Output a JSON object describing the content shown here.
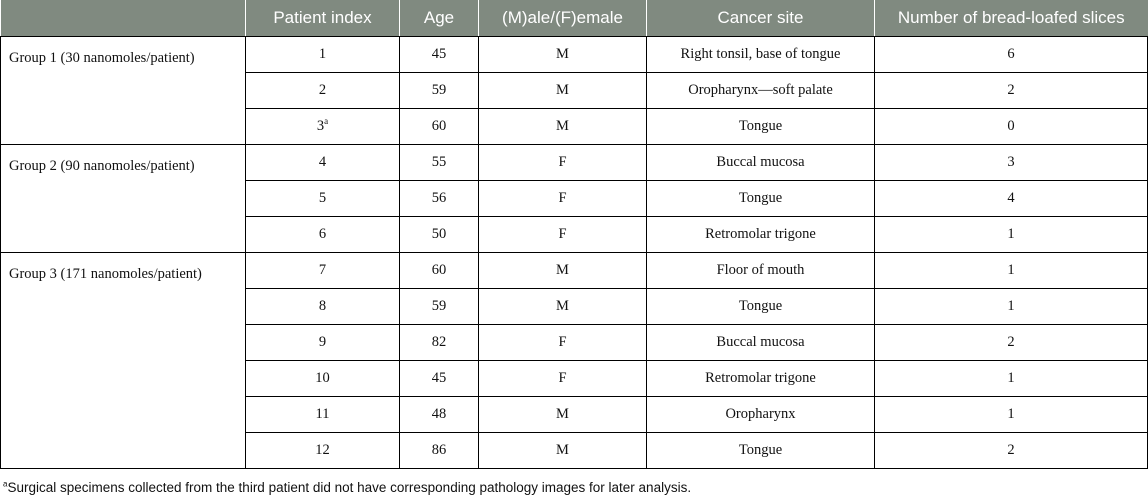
{
  "table": {
    "headers": [
      "",
      "Patient index",
      "Age",
      "(M)ale/(F)emale",
      "Cancer site",
      "Number of bread-loafed slices"
    ],
    "groups": [
      {
        "label": "Group 1 (30 nanomoles/patient)",
        "rows": [
          {
            "index": "1",
            "sup": "",
            "age": "45",
            "sex": "M",
            "site": "Right tonsil, base of tongue",
            "slices": "6"
          },
          {
            "index": "2",
            "sup": "",
            "age": "59",
            "sex": "M",
            "site": "Oropharynx—soft palate",
            "slices": "2"
          },
          {
            "index": "3",
            "sup": "a",
            "age": "60",
            "sex": "M",
            "site": "Tongue",
            "slices": "0"
          }
        ]
      },
      {
        "label": "Group 2 (90 nanomoles/patient)",
        "rows": [
          {
            "index": "4",
            "sup": "",
            "age": "55",
            "sex": "F",
            "site": "Buccal mucosa",
            "slices": "3"
          },
          {
            "index": "5",
            "sup": "",
            "age": "56",
            "sex": "F",
            "site": "Tongue",
            "slices": "4"
          },
          {
            "index": "6",
            "sup": "",
            "age": "50",
            "sex": "F",
            "site": "Retromolar trigone",
            "slices": "1"
          }
        ]
      },
      {
        "label": "Group 3 (171 nanomoles/patient)",
        "rows": [
          {
            "index": "7",
            "sup": "",
            "age": "60",
            "sex": "M",
            "site": "Floor of mouth",
            "slices": "1"
          },
          {
            "index": "8",
            "sup": "",
            "age": "59",
            "sex": "M",
            "site": "Tongue",
            "slices": "1"
          },
          {
            "index": "9",
            "sup": "",
            "age": "82",
            "sex": "F",
            "site": "Buccal mucosa",
            "slices": "2"
          },
          {
            "index": "10",
            "sup": "",
            "age": "45",
            "sex": "F",
            "site": "Retromolar trigone",
            "slices": "1"
          },
          {
            "index": "11",
            "sup": "",
            "age": "48",
            "sex": "M",
            "site": "Oropharynx",
            "slices": "1"
          },
          {
            "index": "12",
            "sup": "",
            "age": "86",
            "sex": "M",
            "site": "Tongue",
            "slices": "2"
          }
        ]
      }
    ]
  },
  "footnote": {
    "marker": "a",
    "text": "Surgical specimens collected from the third patient did not have corresponding pathology images for later analysis."
  },
  "colors": {
    "header_bg": "#808a80",
    "header_text": "#ffffff",
    "grid": "#000000"
  }
}
